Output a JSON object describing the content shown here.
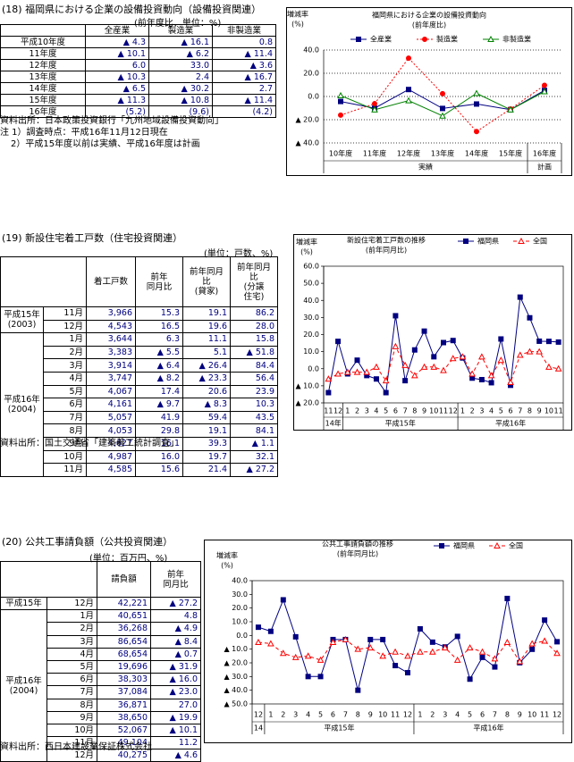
{
  "sections": [
    {
      "title": "(18) 福岡県における企業の設備投資動向（設備投資関連）",
      "unit": "(前年度比、単位：%)",
      "table": {
        "columns": [
          "全産業",
          "製造業",
          "非製造業"
        ],
        "rows": [
          {
            "label": "平成10年度",
            "cells": [
              "▲ 4.3",
              "▲ 16.1",
              "0.8"
            ]
          },
          {
            "label": "11年度",
            "cells": [
              "▲ 10.1",
              "▲ 6.2",
              "▲ 11.4"
            ]
          },
          {
            "label": "12年度",
            "cells": [
              "6.0",
              "33.0",
              "▲ 3.6"
            ]
          },
          {
            "label": "13年度",
            "cells": [
              "▲ 10.3",
              "2.4",
              "▲ 16.7"
            ]
          },
          {
            "label": "14年度",
            "cells": [
              "▲ 6.5",
              "▲ 30.2",
              "2.7"
            ]
          },
          {
            "label": "15年度",
            "cells": [
              "▲ 11.3",
              "▲ 10.8",
              "▲ 11.4"
            ]
          },
          {
            "label": "16年度",
            "cells": [
              "(5.2)",
              "(9.6)",
              "(4.2)"
            ]
          }
        ]
      },
      "source": "資料出所：日本政策投資銀行「九州地域設備投資動向」",
      "notes": [
        "注 1）調査時点：平成16年11月12日現在",
        "2）平成15年度以前は実績、平成16年度は計画"
      ]
    },
    {
      "title": "(19) 新設住宅着工戸数（住宅投資関連）",
      "unit": "(単位：戸数、%)",
      "table": {
        "columns": [
          "着工戸数",
          "前年\n同月比",
          "前年同月比\n(貸家)",
          "前年同月比\n(分譲\n住宅)"
        ],
        "groups": [
          {
            "label": [
              "平成15年",
              "(2003)"
            ],
            "rows": [
              {
                "month": "11月",
                "cells": [
                  "3,966",
                  "15.3",
                  "19.1",
                  "86.2"
                ]
              },
              {
                "month": "12月",
                "cells": [
                  "4,543",
                  "16.5",
                  "19.6",
                  "28.0"
                ]
              }
            ]
          },
          {
            "label": [
              "平成16年",
              "(2004)"
            ],
            "rows": [
              {
                "month": "1月",
                "cells": [
                  "3,644",
                  "6.3",
                  "11.1",
                  "15.8"
                ]
              },
              {
                "month": "2月",
                "cells": [
                  "3,383",
                  "▲ 5.5",
                  "5.1",
                  "▲ 51.8"
                ]
              },
              {
                "month": "3月",
                "cells": [
                  "3,914",
                  "▲ 6.4",
                  "▲ 26.4",
                  "84.4"
                ]
              },
              {
                "month": "4月",
                "cells": [
                  "3,747",
                  "▲ 8.2",
                  "▲ 23.3",
                  "56.4"
                ]
              },
              {
                "month": "5月",
                "cells": [
                  "4,067",
                  "17.4",
                  "20.6",
                  "23.9"
                ]
              },
              {
                "month": "6月",
                "cells": [
                  "4,161",
                  "▲ 9.7",
                  "▲ 8.3",
                  "10.3"
                ]
              },
              {
                "month": "7月",
                "cells": [
                  "5,057",
                  "41.9",
                  "59.4",
                  "43.5"
                ]
              },
              {
                "month": "8月",
                "cells": [
                  "4,053",
                  "29.8",
                  "19.1",
                  "84.1"
                ]
              },
              {
                "month": "9月",
                "cells": [
                  "4,627",
                  "16.1",
                  "39.3",
                  "▲ 1.1"
                ]
              },
              {
                "month": "10月",
                "cells": [
                  "4,987",
                  "16.0",
                  "19.7",
                  "32.1"
                ]
              },
              {
                "month": "11月",
                "cells": [
                  "4,585",
                  "15.6",
                  "21.4",
                  "▲ 27.2"
                ]
              }
            ]
          }
        ]
      },
      "source": "資料出所：国土交通省「建築着工統計調査」"
    },
    {
      "title": "(20) 公共工事請負額（公共投資関連）",
      "unit": "(単位：百万円、%)",
      "table": {
        "columns": [
          "請負額",
          "前年\n同月比"
        ],
        "groups": [
          {
            "label": [
              "平成15年"
            ],
            "rows": [
              {
                "month": "12月",
                "cells": [
                  "42,221",
                  "▲ 27.2"
                ]
              }
            ]
          },
          {
            "label": [
              "平成16年",
              "(2004)"
            ],
            "rows": [
              {
                "month": "1月",
                "cells": [
                  "40,651",
                  "4.8"
                ]
              },
              {
                "month": "2月",
                "cells": [
                  "36,268",
                  "▲ 4.9"
                ]
              },
              {
                "month": "3月",
                "cells": [
                  "86,654",
                  "▲ 8.4"
                ]
              },
              {
                "month": "4月",
                "cells": [
                  "68,654",
                  "▲ 0.7"
                ]
              },
              {
                "month": "5月",
                "cells": [
                  "19,696",
                  "▲ 31.9"
                ]
              },
              {
                "month": "6月",
                "cells": [
                  "38,303",
                  "▲ 16.0"
                ]
              },
              {
                "month": "7月",
                "cells": [
                  "37,084",
                  "▲ 23.0"
                ]
              },
              {
                "month": "8月",
                "cells": [
                  "36,871",
                  "27.0"
                ]
              },
              {
                "month": "9月",
                "cells": [
                  "38,650",
                  "▲ 19.9"
                ]
              },
              {
                "month": "10月",
                "cells": [
                  "52,067",
                  "▲ 10.1"
                ]
              },
              {
                "month": "11月",
                "cells": [
                  "49,104",
                  "11.2"
                ]
              },
              {
                "month": "12月",
                "cells": [
                  "40,275",
                  "▲ 4.6"
                ]
              }
            ]
          }
        ]
      },
      "source": "資料出所：西日本建設業保証株式会社"
    }
  ],
  "chart_data": [
    {
      "type": "line",
      "title": [
        "福岡県における企業の設備投資動向",
        "(前年度比)"
      ],
      "y_label": [
        "増減率",
        "(%)"
      ],
      "categories": [
        "10年度",
        "11年度",
        "12年度",
        "13年度",
        "14年度",
        "15年度",
        "16年度"
      ],
      "x_groups": [
        {
          "label": "実績",
          "count": 6
        },
        {
          "label": "計画",
          "count": 1
        }
      ],
      "series": [
        {
          "name": "全産業",
          "color": "#000080",
          "marker": "square",
          "filled": true,
          "line_style": "solid",
          "values": [
            -4.3,
            -10.1,
            6.0,
            -10.3,
            -6.5,
            -11.3,
            5.2
          ]
        },
        {
          "name": "製造業",
          "color": "#ff0000",
          "marker": "circle",
          "filled": true,
          "line_style": "dotted",
          "values": [
            -16.1,
            -6.2,
            33.0,
            2.4,
            -30.2,
            -10.8,
            9.6
          ]
        },
        {
          "name": "非製造業",
          "color": "#008000",
          "marker": "triangle",
          "filled": false,
          "line_style": "solid",
          "values": [
            0.8,
            -11.4,
            -3.6,
            -16.7,
            2.7,
            -11.4,
            4.2
          ]
        }
      ],
      "ylim": [
        -40,
        40
      ],
      "yticks": [
        {
          "value": 40,
          "label": "40.0"
        },
        {
          "value": 20,
          "label": "20.0"
        },
        {
          "value": 0,
          "label": "0.0"
        },
        {
          "value": -20,
          "label": "▲ 20.0"
        },
        {
          "value": -40,
          "label": "▲ 40.0"
        }
      ],
      "grid": true,
      "legend": "top"
    },
    {
      "type": "line",
      "title": [
        "新設住宅着工戸数の推移",
        "(前年同月比)"
      ],
      "y_label": [
        "増減率",
        "(%)"
      ],
      "categories": [
        "11",
        "12",
        "1",
        "2",
        "3",
        "4",
        "5",
        "6",
        "7",
        "8",
        "9",
        "10",
        "11",
        "12",
        "1",
        "2",
        "3",
        "4",
        "5",
        "6",
        "7",
        "8",
        "9",
        "10",
        "11"
      ],
      "x_groups": [
        {
          "label": "14年",
          "count": 2
        },
        {
          "label": "平成15年",
          "count": 12
        },
        {
          "label": "平成16年",
          "count": 11
        }
      ],
      "series": [
        {
          "name": "福岡県",
          "color": "#000080",
          "marker": "square",
          "filled": true,
          "line_style": "solid",
          "values": [
            -14,
            16,
            -3,
            5,
            -4,
            -6,
            -14,
            31,
            -7,
            11,
            22,
            7,
            15.3,
            16.5,
            6.3,
            -5.5,
            -6.4,
            -8.2,
            17.4,
            -9.7,
            41.9,
            29.8,
            16.1,
            16.0,
            15.6
          ]
        },
        {
          "name": "全国",
          "color": "#ff0000",
          "marker": "triangle",
          "filled": false,
          "line_style": "dashed",
          "values": [
            -6,
            -3,
            -2,
            -2,
            -2,
            1,
            -7,
            13,
            2,
            -4,
            1,
            1,
            -1,
            6,
            7,
            -3,
            7,
            -4,
            5,
            -8,
            8,
            10,
            10,
            1,
            0
          ]
        }
      ],
      "ylim": [
        -20,
        60
      ],
      "yticks": [
        {
          "value": 60,
          "label": "60.0"
        },
        {
          "value": 50,
          "label": "50.0"
        },
        {
          "value": 40,
          "label": "40.0"
        },
        {
          "value": 30,
          "label": "30.0"
        },
        {
          "value": 20,
          "label": "20.0"
        },
        {
          "value": 10,
          "label": "10.0"
        },
        {
          "value": 0,
          "label": "0.0"
        },
        {
          "value": -10,
          "label": "▲ 10.0"
        },
        {
          "value": -20,
          "label": "▲ 20.0"
        }
      ],
      "grid": false,
      "legend": "top-right"
    },
    {
      "type": "line",
      "title": [
        "公共工事請負額の推移",
        "(前年同月比)"
      ],
      "y_label": [
        "増減率",
        "(%)"
      ],
      "categories": [
        "12",
        "1",
        "2",
        "3",
        "4",
        "5",
        "6",
        "7",
        "8",
        "9",
        "10",
        "11",
        "12",
        "1",
        "2",
        "3",
        "4",
        "5",
        "6",
        "7",
        "8",
        "9",
        "10",
        "11",
        "12"
      ],
      "x_groups": [
        {
          "label": "14",
          "count": 1
        },
        {
          "label": "平成15年",
          "count": 12
        },
        {
          "label": "平成16年",
          "count": 12
        }
      ],
      "series": [
        {
          "name": "福岡県",
          "color": "#000080",
          "marker": "square",
          "filled": true,
          "line_style": "solid",
          "values": [
            6,
            3,
            26,
            -1,
            -30,
            -30,
            -3,
            -3,
            -40,
            -3,
            -3,
            -22,
            -27.2,
            4.8,
            -4.9,
            -8.4,
            -0.7,
            -31.9,
            -16.0,
            -23.0,
            27.0,
            -19.9,
            -10.1,
            11.2,
            -4.6
          ]
        },
        {
          "name": "全国",
          "color": "#ff0000",
          "marker": "triangle",
          "filled": false,
          "line_style": "dashed",
          "values": [
            -5,
            -6,
            -13,
            -16,
            -15,
            -18,
            -5,
            -3,
            -10,
            -9,
            -15,
            -12,
            -15,
            -12,
            -12,
            -9,
            -18,
            -9,
            -12,
            -17,
            -5,
            -19,
            -6,
            -4,
            -13
          ]
        }
      ],
      "ylim": [
        -50,
        40
      ],
      "yticks": [
        {
          "value": 40,
          "label": "40.0"
        },
        {
          "value": 30,
          "label": "30.0"
        },
        {
          "value": 20,
          "label": "20.0"
        },
        {
          "value": 10,
          "label": "10.0"
        },
        {
          "value": 0,
          "label": "0.0"
        },
        {
          "value": -10,
          "label": "▲ 10.0"
        },
        {
          "value": -20,
          "label": "▲ 20.0"
        },
        {
          "value": -30,
          "label": "▲ 30.0"
        },
        {
          "value": -40,
          "label": "▲ 40.0"
        },
        {
          "value": -50,
          "label": "▲ 50.0"
        }
      ],
      "grid": false,
      "legend": "top-right"
    }
  ]
}
